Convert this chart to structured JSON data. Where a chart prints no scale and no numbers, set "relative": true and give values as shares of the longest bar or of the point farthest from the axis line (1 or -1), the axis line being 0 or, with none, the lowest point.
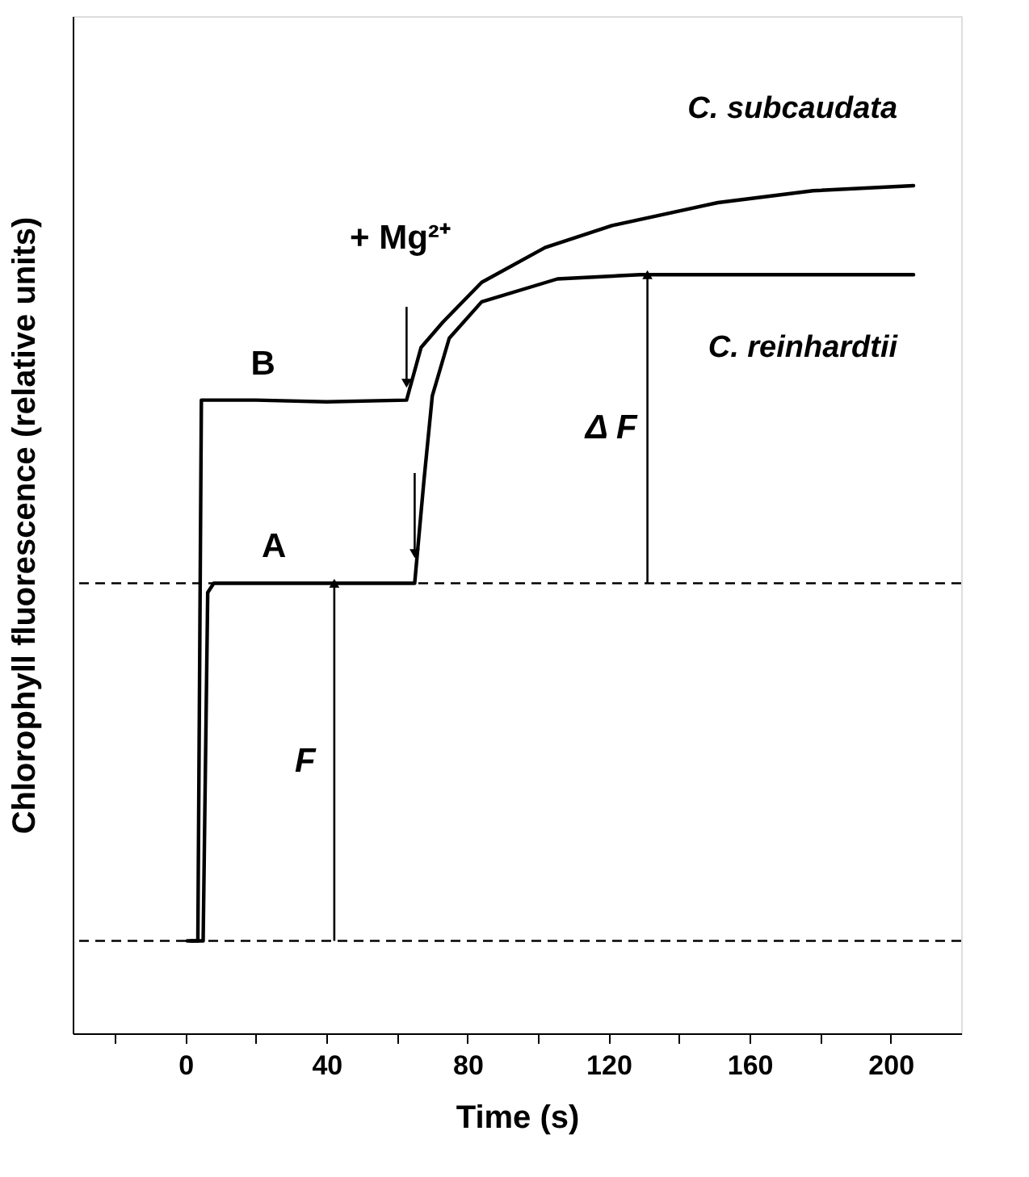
{
  "chart_data": {
    "type": "line",
    "relative": true,
    "xlabel": "Time (s)",
    "ylabel": "Chlorophyll fluorescence (relative units)",
    "xlim": [
      -32,
      220
    ],
    "xticks": [
      {
        "value": -20,
        "label": null
      },
      0,
      {
        "value": 20,
        "label": null
      },
      40,
      {
        "value": 60,
        "label": null
      },
      80,
      {
        "value": 100,
        "label": null
      },
      120,
      {
        "value": 140,
        "label": null
      },
      160,
      {
        "value": 180,
        "label": null
      },
      200
    ],
    "grid": false,
    "line_style": "solid",
    "marker": "none",
    "series": [
      {
        "name": "C. subcaudata",
        "color": "#000000",
        "x": [
          0.5,
          3.5,
          4.5,
          20,
          40,
          62.7,
          66.8,
          73,
          84,
          102,
          121,
          151,
          178,
          206.5
        ],
        "values": [
          0.109,
          0.109,
          0.747,
          0.747,
          0.745,
          0.747,
          0.809,
          0.839,
          0.886,
          0.927,
          0.953,
          0.98,
          0.994,
          1.0
        ]
      },
      {
        "name": "C. reinhardtii",
        "color": "#000000",
        "x": [
          1.5,
          5,
          6.3,
          8,
          20,
          40,
          65,
          67.6,
          70,
          74.8,
          84,
          105.5,
          129,
          160,
          206.5
        ],
        "values": [
          0.109,
          0.109,
          0.52,
          0.531,
          0.531,
          0.531,
          0.531,
          0.651,
          0.752,
          0.82,
          0.863,
          0.89,
          0.895,
          0.895,
          0.895
        ]
      }
    ],
    "ref_lines": [
      {
        "axis": "y",
        "value": 0.109,
        "line_style": "dashed",
        "color": "#000000"
      },
      {
        "axis": "y",
        "value": 0.531,
        "line_style": "dashed",
        "color": "#000000"
      }
    ],
    "annotations": [
      "B",
      "A",
      "+ Mg²⁺",
      "F",
      "Δ F"
    ]
  }
}
